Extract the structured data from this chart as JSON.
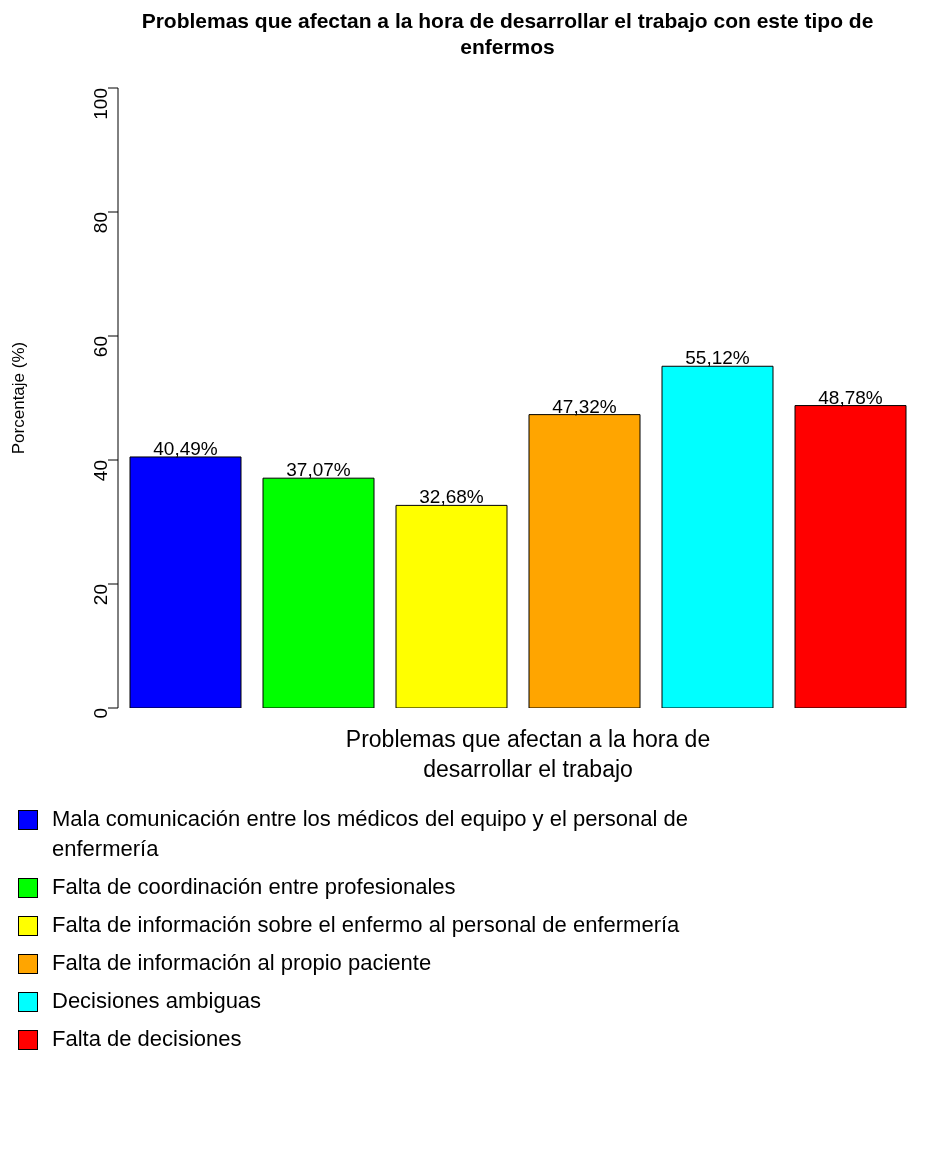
{
  "chart_data": {
    "type": "bar",
    "title": "Problemas que afectan a la hora de desarrollar el trabajo con este tipo de enfermos",
    "xlabel": "Problemas que afectan a la hora de desarrollar el trabajo",
    "ylabel": "Porcentaje (%)",
    "categories": [
      null
    ],
    "series": [
      {
        "name": "Mala comunicación entre los médicos del equipo y el personal de enfermería",
        "color": "#0000ff",
        "values": [
          40.49
        ],
        "value_labels": [
          "40,49%"
        ]
      },
      {
        "name": "Falta de coordinación entre profesionales",
        "color": "#00ff00",
        "values": [
          37.07
        ],
        "value_labels": [
          "37,07%"
        ]
      },
      {
        "name": "Falta de información sobre el enfermo al personal de enfermería",
        "color": "#ffff00",
        "values": [
          32.68
        ],
        "value_labels": [
          "32,68%"
        ]
      },
      {
        "name": "Falta de información al propio paciente",
        "color": "#ffa500",
        "values": [
          47.32
        ],
        "value_labels": [
          "47,32%"
        ]
      },
      {
        "name": "Decisiones ambiguas",
        "color": "#00ffff",
        "values": [
          55.12
        ],
        "value_labels": [
          "55,12%"
        ]
      },
      {
        "name": "Falta de decisiones",
        "color": "#ff0000",
        "values": [
          48.78
        ],
        "value_labels": [
          "48,78%"
        ]
      }
    ],
    "ylim": [
      0,
      100
    ],
    "yticks": [
      0,
      20,
      40,
      60,
      80,
      100
    ],
    "legend": "bottom"
  }
}
